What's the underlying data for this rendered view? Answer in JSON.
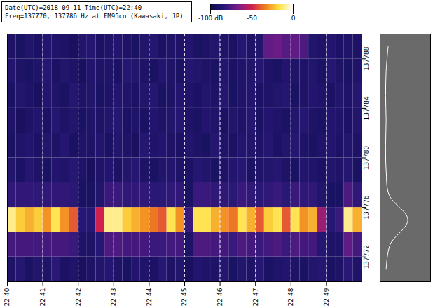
{
  "chart_data": {
    "type": "heatmap",
    "title": "Date(UTC)=2018-09-11 Time(UTC)=22:40",
    "subtitle": "Freq=137770, 137786 Hz at FM95co (Kawasaki, JP)",
    "xlim": [
      0,
      10
    ],
    "xticks": [
      {
        "value": 0,
        "label": "22:40"
      },
      {
        "value": 1,
        "label": "22:41"
      },
      {
        "value": 2,
        "label": "22:42"
      },
      {
        "value": 3,
        "label": "22:43"
      },
      {
        "value": 4,
        "label": "22:44"
      },
      {
        "value": 5,
        "label": "22:45"
      },
      {
        "value": 6,
        "label": "22:46"
      },
      {
        "value": 7,
        "label": "22:47"
      },
      {
        "value": 8,
        "label": "22:48"
      },
      {
        "value": 9,
        "label": "22:49"
      }
    ],
    "ylim": [
      137770,
      137790
    ],
    "yticks": [
      137772,
      137776,
      137780,
      137784,
      137788
    ],
    "grid": true,
    "time_bins": [
      0,
      0.25,
      0.5,
      0.75,
      1,
      1.25,
      1.5,
      1.75,
      2,
      2.25,
      2.5,
      2.75,
      3,
      3.25,
      3.5,
      3.75,
      4,
      4.25,
      4.5,
      4.75,
      5,
      5.25,
      5.5,
      5.75,
      6,
      6.25,
      6.5,
      6.75,
      7,
      7.25,
      7.5,
      7.75,
      8,
      8.25,
      8.5,
      8.75,
      9,
      9.25,
      9.5,
      9.75,
      10
    ],
    "freq_bins": [
      137770,
      137772,
      137774,
      137776,
      137778,
      137780,
      137782,
      137784,
      137786,
      137788,
      137790
    ],
    "z": [
      [
        -90,
        -86,
        -92,
        -88,
        -90,
        -84,
        -91,
        -89,
        -93,
        -90,
        -88,
        -86,
        -90,
        -92,
        -87,
        -89,
        -91,
        -85,
        -90,
        -88,
        -93,
        -87,
        -89,
        -90,
        -86,
        -92,
        -88,
        -90,
        -85,
        -91,
        -89,
        -87,
        -90,
        -92,
        -88,
        -86,
        -91,
        -90,
        -84,
        -89
      ],
      [
        -78,
        -78,
        -78,
        -78,
        -78,
        -78,
        -78,
        -80,
        -90,
        -90,
        -85,
        -76,
        -76,
        -78,
        -78,
        -78,
        -80,
        -80,
        -78,
        -78,
        -90,
        -76,
        -76,
        -78,
        -78,
        -80,
        -76,
        -78,
        -80,
        -78,
        -76,
        -80,
        -76,
        -78,
        -78,
        -86,
        -90,
        -90,
        -72,
        -78
      ],
      [
        -10,
        -20,
        -25,
        -20,
        -30,
        -15,
        -30,
        -40,
        -85,
        -85,
        -50,
        -10,
        -10,
        -20,
        -25,
        -30,
        -35,
        -40,
        -15,
        -30,
        -80,
        -15,
        -15,
        -25,
        -30,
        -35,
        -15,
        -25,
        -40,
        -20,
        -15,
        -40,
        -15,
        -30,
        -25,
        -60,
        -85,
        -80,
        -10,
        -25
      ],
      [
        -82,
        -82,
        -82,
        -82,
        -82,
        -82,
        -82,
        -84,
        -92,
        -92,
        -88,
        -80,
        -80,
        -82,
        -82,
        -82,
        -84,
        -84,
        -82,
        -82,
        -92,
        -80,
        -80,
        -82,
        -82,
        -84,
        -80,
        -82,
        -84,
        -82,
        -80,
        -84,
        -80,
        -82,
        -82,
        -88,
        -92,
        -92,
        -76,
        -82
      ],
      [
        -88,
        -91,
        -86,
        -90,
        -92,
        -87,
        -89,
        -85,
        -90,
        -93,
        -89,
        -87,
        -91,
        -88,
        -86,
        -90,
        -92,
        -88,
        -87,
        -90,
        -91,
        -86,
        -88,
        -92,
        -90,
        -87,
        -85,
        -91,
        -89,
        -88,
        -86,
        -90,
        -92,
        -87,
        -89,
        -91,
        -88,
        -90,
        -86,
        -92
      ],
      [
        -92,
        -89,
        -87,
        -91,
        -88,
        -90,
        -86,
        -92,
        -89,
        -90,
        -87,
        -91,
        -88,
        -90,
        -93,
        -86,
        -89,
        -87,
        -90,
        -91,
        -88,
        -90,
        -92,
        -86,
        -89,
        -91,
        -87,
        -88,
        -90,
        -86,
        -91,
        -88,
        -86,
        -90,
        -92,
        -89,
        -87,
        -91,
        -88,
        -90
      ],
      [
        -89,
        -93,
        -90,
        -87,
        -91,
        -86,
        -90,
        -88,
        -92,
        -89,
        -90,
        -88,
        -86,
        -91,
        -89,
        -92,
        -87,
        -90,
        -88,
        -86,
        -90,
        -92,
        -87,
        -89,
        -91,
        -88,
        -90,
        -86,
        -92,
        -87,
        -89,
        -91,
        -88,
        -86,
        -90,
        -92,
        -87,
        -89,
        -91,
        -88
      ],
      [
        -91,
        -88,
        -90,
        -93,
        -87,
        -89,
        -92,
        -86,
        -90,
        -88,
        -92,
        -90,
        -87,
        -89,
        -91,
        -88,
        -86,
        -92,
        -90,
        -87,
        -89,
        -91,
        -88,
        -90,
        -86,
        -92,
        -89,
        -87,
        -91,
        -90,
        -88,
        -86,
        -92,
        -90,
        -87,
        -89,
        -91,
        -88,
        -90,
        -86
      ],
      [
        -87,
        -90,
        -92,
        -89,
        -86,
        -91,
        -88,
        -90,
        -93,
        -87,
        -90,
        -89,
        -91,
        -86,
        -88,
        -90,
        -92,
        -87,
        -89,
        -91,
        -86,
        -88,
        -90,
        -92,
        -87,
        -91,
        -89,
        -88,
        -86,
        -90,
        -92,
        -87,
        -89,
        -90,
        -88,
        -91,
        -86,
        -90,
        -92,
        -89
      ],
      [
        -90,
        -92,
        -88,
        -91,
        -87,
        -89,
        -90,
        -93,
        -88,
        -86,
        -91,
        -89,
        -87,
        -90,
        -92,
        -88,
        -86,
        -91,
        -89,
        -90,
        -87,
        -92,
        -90,
        -88,
        -89,
        -91,
        -86,
        -90,
        -88,
        -72,
        -70,
        -74,
        -72,
        -76,
        -88,
        -90,
        -87,
        -91,
        -89,
        -90
      ]
    ],
    "colorbar": {
      "range": [
        -100,
        0
      ],
      "ticks": [
        {
          "value": -100,
          "label": "-100 dB"
        },
        -50,
        0
      ]
    },
    "profile": {
      "y": [
        137771,
        137773,
        137775,
        137777,
        137779,
        137781,
        137783,
        137785,
        137787,
        137789
      ],
      "values": [
        -88,
        -80,
        -45,
        -82,
        -88,
        -89,
        -88,
        -89,
        -88,
        -84
      ],
      "xlim": [
        -100,
        0
      ],
      "color": "#ffffff",
      "tick_labels": false
    }
  }
}
